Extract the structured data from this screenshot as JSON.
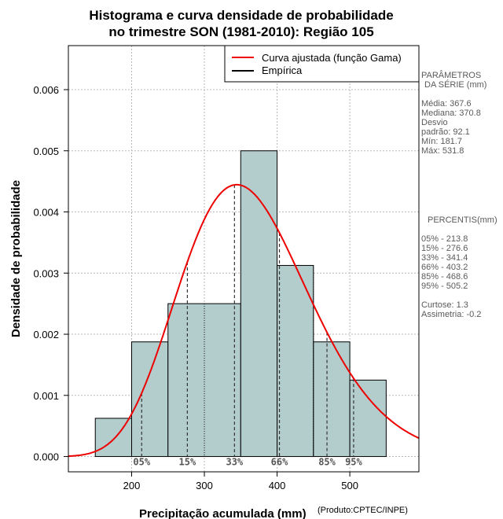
{
  "chart_data": {
    "type": "histogram",
    "title": [
      "Histograma e curva densidade de probabilidade",
      "no trimestre SON (1981-2010): Região 105"
    ],
    "xlabel": "Precipitação acumulada (mm)",
    "ylabel": "Densidade de probabilidade",
    "credit": "(Produto:CPTEC/INPE)",
    "xlim": [
      113,
      595
    ],
    "ylim": [
      -0.00025,
      0.00672
    ],
    "xticks": [
      200,
      300,
      400,
      500
    ],
    "yticks": [
      0.0,
      0.001,
      0.002,
      0.003,
      0.004,
      0.005,
      0.006
    ],
    "ytick_labels": [
      "0.000",
      "0.001",
      "0.002",
      "0.003",
      "0.004",
      "0.005",
      "0.006"
    ],
    "grid": true,
    "bar_color": "#b3cccc",
    "curve_color": "#ee0000",
    "bins": [
      {
        "x0": 150,
        "x1": 200,
        "density": 0.000625
      },
      {
        "x0": 200,
        "x1": 250,
        "density": 0.001875
      },
      {
        "x0": 250,
        "x1": 350,
        "density": 0.0025
      },
      {
        "x0": 350,
        "x1": 400,
        "density": 0.005
      },
      {
        "x0": 400,
        "x1": 450,
        "density": 0.003125
      },
      {
        "x0": 450,
        "x1": 500,
        "density": 0.001875
      },
      {
        "x0": 500,
        "x1": 550,
        "density": 0.00125
      }
    ],
    "internal_dividers": [
      {
        "x": 300,
        "ymax": 0.0025
      },
      {
        "x": 450,
        "ymax": 0.003125
      }
    ],
    "gamma_fit": {
      "shape": 15.9,
      "scale": 23.12
    },
    "percentile_markers": [
      {
        "label": "05%",
        "x": 213.8
      },
      {
        "label": "15%",
        "x": 276.6
      },
      {
        "label": "33%",
        "x": 341.4
      },
      {
        "label": "66%",
        "x": 403.2
      },
      {
        "label": "85%",
        "x": 468.6
      },
      {
        "label": "95%",
        "x": 505.2
      }
    ],
    "legend": {
      "position": "top-right",
      "entries": [
        {
          "label": "Curva ajustada (função Gama)",
          "color": "#ee0000"
        },
        {
          "label": "Empírica",
          "color": "#000000"
        }
      ]
    }
  },
  "stats_panel": {
    "heading1": "PARÂMETROS",
    "heading2": "DA SÉRIE (mm)",
    "media": "Média:  367.6",
    "mediana": "Mediana:  370.8",
    "desvio1": "Desvio",
    "desvio2": "padrão:  92.1",
    "min": "Mín:  181.7",
    "max": "Máx:  531.8"
  },
  "percentis_panel": {
    "heading": "PERCENTIS(mm)",
    "rows": [
      "05% -  213.8",
      "15% -  276.6",
      "33% -  341.4",
      "66% -  403.2",
      "85% -  468.6",
      "95% -  505.2"
    ],
    "curtose": "Curtose:  1.3",
    "assimetria": "Assimetria:  -0.2"
  }
}
